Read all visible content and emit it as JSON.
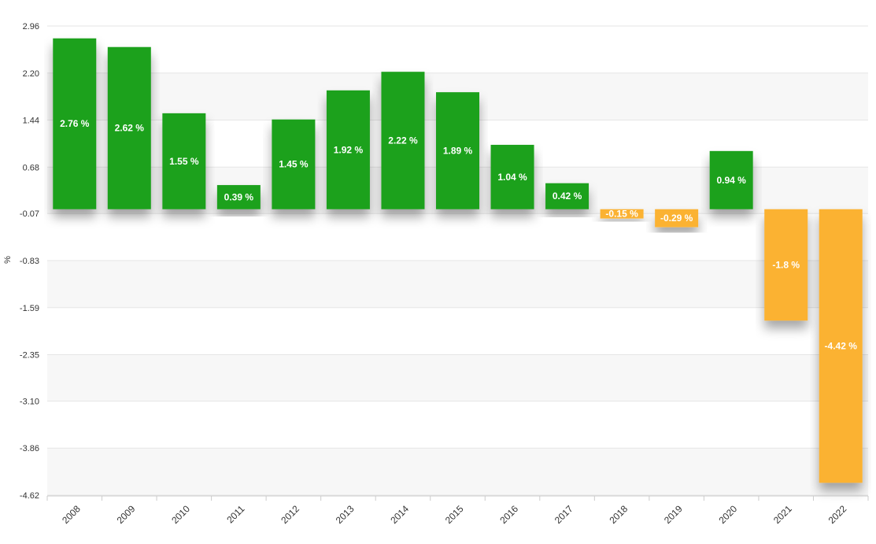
{
  "chart_data": {
    "type": "bar",
    "title": "",
    "xlabel": "",
    "ylabel": "%",
    "categories": [
      "2008",
      "2009",
      "2010",
      "2011",
      "2012",
      "2013",
      "2014",
      "2015",
      "2016",
      "2017",
      "2018",
      "2019",
      "2020",
      "2021",
      "2022"
    ],
    "values": [
      2.76,
      2.62,
      1.55,
      0.39,
      1.45,
      1.92,
      2.22,
      1.89,
      1.04,
      0.42,
      -0.15,
      -0.29,
      0.94,
      -1.8,
      -4.42
    ],
    "data_labels": [
      "2.76 %",
      "2.62 %",
      "1.55 %",
      "0.39 %",
      "1.45 %",
      "1.92 %",
      "2.22 %",
      "1.89 %",
      "1.04 %",
      "0.42 %",
      "-0.15 %",
      "-0.29 %",
      "0.94 %",
      "-1.8 %",
      "-4.42 %"
    ],
    "yticks": [
      "2.96",
      "2.20",
      "1.44",
      "0.68",
      "-0.07",
      "-0.83",
      "-1.59",
      "-2.35",
      "-3.10",
      "-3.86",
      "-4.62"
    ],
    "ylim": [
      -4.62,
      2.96
    ],
    "grid": true,
    "legend": "none",
    "colors": {
      "positive": "#1fa11f",
      "negative": "#fbb233"
    }
  }
}
